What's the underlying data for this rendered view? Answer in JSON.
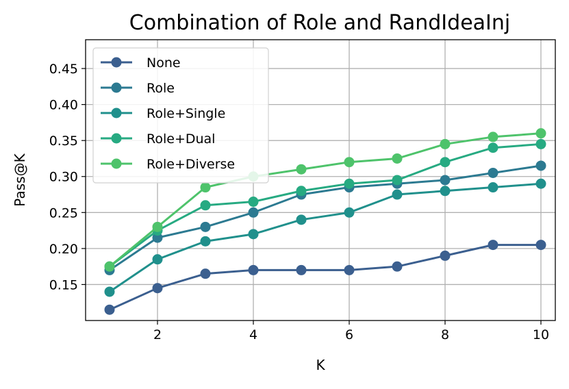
{
  "chart_data": {
    "type": "line",
    "title": "Combination of Role and RandIdeaInj",
    "xlabel": "K",
    "ylabel": "Pass@K",
    "x": [
      1,
      2,
      3,
      4,
      5,
      6,
      7,
      8,
      9,
      10
    ],
    "xlim": [
      0.5,
      10.3
    ],
    "ylim": [
      0.1,
      0.49
    ],
    "xticks": [
      2,
      4,
      6,
      8,
      10
    ],
    "yticks": [
      0.15,
      0.2,
      0.25,
      0.3,
      0.35,
      0.4,
      0.45
    ],
    "xtick_labels": [
      "2",
      "4",
      "6",
      "8",
      "10"
    ],
    "ytick_labels": [
      "0.15",
      "0.20",
      "0.25",
      "0.30",
      "0.35",
      "0.40",
      "0.45"
    ],
    "grid": true,
    "legend_position": "upper-left",
    "series": [
      {
        "name": "None",
        "color": "#3b5f8f",
        "values": [
          0.115,
          0.145,
          0.165,
          0.17,
          0.17,
          0.17,
          0.175,
          0.19,
          0.205,
          0.205
        ]
      },
      {
        "name": "Role",
        "color": "#2c7a91",
        "values": [
          0.17,
          0.215,
          0.23,
          0.25,
          0.275,
          0.285,
          0.29,
          0.295,
          0.305,
          0.315
        ]
      },
      {
        "name": "Role+Single",
        "color": "#20908c",
        "values": [
          0.14,
          0.185,
          0.21,
          0.22,
          0.24,
          0.25,
          0.275,
          0.28,
          0.285,
          0.29
        ]
      },
      {
        "name": "Role+Dual",
        "color": "#27aa82",
        "values": [
          0.175,
          0.225,
          0.26,
          0.265,
          0.28,
          0.29,
          0.295,
          0.32,
          0.34,
          0.345
        ]
      },
      {
        "name": "Role+Diverse",
        "color": "#4ec36b",
        "values": [
          0.175,
          0.23,
          0.285,
          0.3,
          0.31,
          0.32,
          0.325,
          0.345,
          0.355,
          0.36
        ]
      }
    ]
  }
}
